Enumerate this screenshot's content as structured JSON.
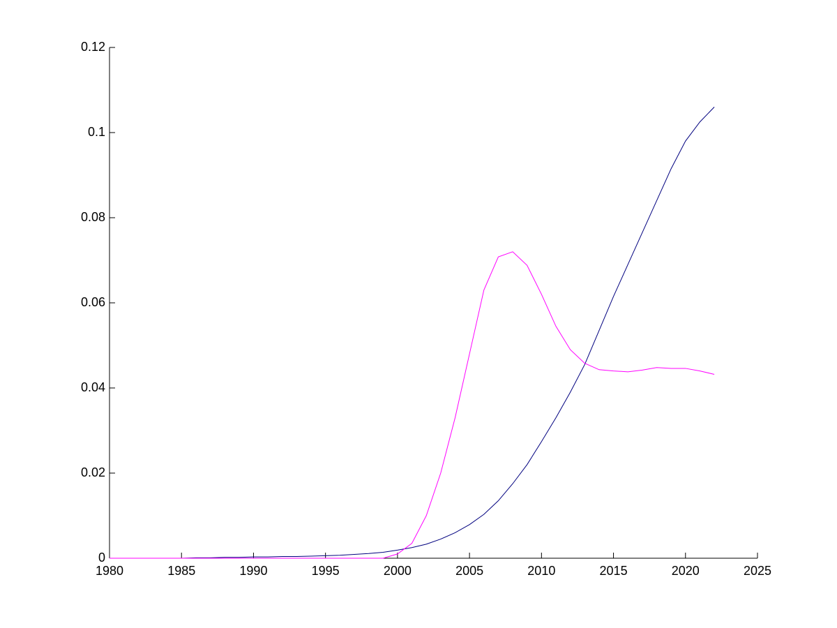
{
  "chart_data": {
    "type": "line",
    "x": [
      1980,
      1981,
      1982,
      1983,
      1984,
      1985,
      1986,
      1987,
      1988,
      1989,
      1990,
      1991,
      1992,
      1993,
      1994,
      1995,
      1996,
      1997,
      1998,
      1999,
      2000,
      2001,
      2002,
      2003,
      2004,
      2005,
      2006,
      2007,
      2008,
      2009,
      2010,
      2011,
      2012,
      2013,
      2014,
      2015,
      2016,
      2017,
      2018,
      2019,
      2020,
      2021,
      2022
    ],
    "series": [
      {
        "color": "#00007f",
        "values": [
          0,
          0,
          0,
          0,
          0,
          0,
          0.0001,
          0.0001,
          0.0002,
          0.0002,
          0.0003,
          0.0003,
          0.0004,
          0.0004,
          0.0005,
          0.0006,
          0.0007,
          0.0009,
          0.0011,
          0.0014,
          0.0019,
          0.0025,
          0.0033,
          0.0045,
          0.006,
          0.0079,
          0.0103,
          0.0135,
          0.0175,
          0.022,
          0.0274,
          0.033,
          0.039,
          0.0455,
          0.0535,
          0.0615,
          0.069,
          0.0765,
          0.084,
          0.0915,
          0.098,
          0.1025,
          0.106
        ]
      },
      {
        "color": "#ff00ff",
        "values": [
          0,
          0,
          0,
          0,
          0,
          0,
          0,
          0,
          0,
          0,
          0,
          0,
          0,
          0,
          0,
          0,
          0,
          0,
          0,
          0,
          0.001,
          0.0035,
          0.01,
          0.02,
          0.033,
          0.048,
          0.063,
          0.0708,
          0.072,
          0.0688,
          0.062,
          0.0545,
          0.049,
          0.0458,
          0.0443,
          0.044,
          0.0438,
          0.0442,
          0.0448,
          0.0446,
          0.0446,
          0.044,
          0.0432
        ]
      }
    ],
    "xlim": [
      1980,
      2025
    ],
    "xticks": [
      1980,
      1985,
      1990,
      1995,
      2000,
      2005,
      2010,
      2015,
      2020,
      2025
    ],
    "ylim": [
      0,
      0.12
    ],
    "yticks": [
      0,
      0.02,
      0.04,
      0.06,
      0.08,
      0.1,
      0.12
    ]
  }
}
